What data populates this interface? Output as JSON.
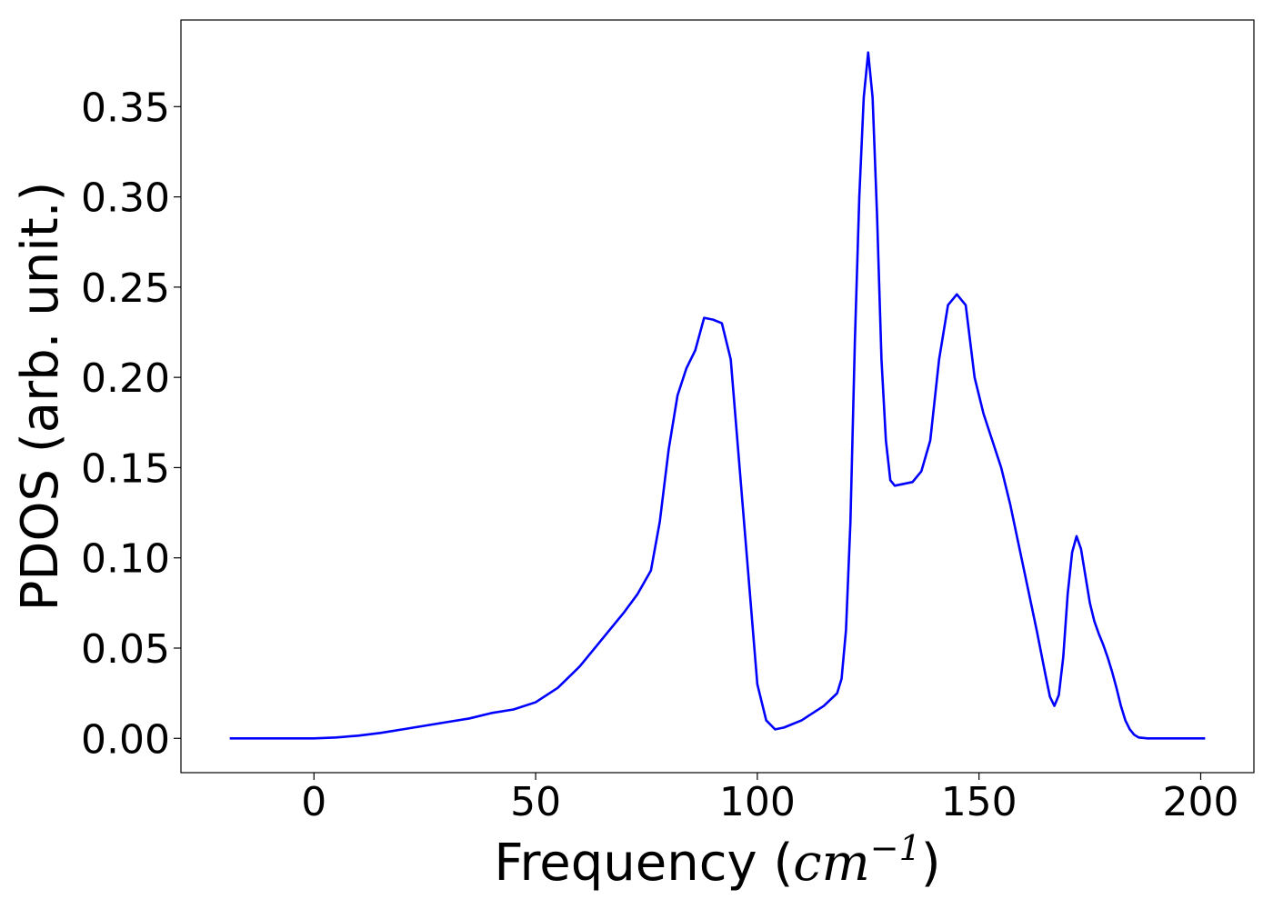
{
  "chart_data": {
    "type": "line",
    "xlabel_main": "Frequency (",
    "xlabel_unit": "cm",
    "xlabel_sup": "−1",
    "xlabel_close": ")",
    "ylabel": "PDOS (arb. unit.)",
    "xlim": [
      -30,
      212
    ],
    "ylim": [
      -0.019,
      0.398
    ],
    "xticks": [
      0,
      50,
      100,
      150,
      200
    ],
    "yticks": [
      0.0,
      0.05,
      0.1,
      0.15,
      0.2,
      0.25,
      0.3,
      0.35
    ],
    "xtick_labels": [
      "0",
      "50",
      "100",
      "150",
      "200"
    ],
    "ytick_labels": [
      "0.00",
      "0.05",
      "0.10",
      "0.15",
      "0.20",
      "0.25",
      "0.30",
      "0.35"
    ],
    "grid": false,
    "series": [
      {
        "color": "#0000ff",
        "x": [
          -19,
          0,
          5,
          10,
          15,
          20,
          25,
          30,
          35,
          40,
          45,
          50,
          55,
          60,
          65,
          70,
          73,
          76,
          78,
          80,
          82,
          84,
          86,
          88,
          90,
          92,
          94,
          96,
          98,
          100,
          102,
          104,
          106,
          110,
          115,
          118,
          119,
          120,
          121,
          122,
          123,
          124,
          125,
          126,
          127,
          128,
          129,
          130,
          131,
          133,
          135,
          137,
          139,
          141,
          143,
          145,
          147,
          149,
          151,
          153,
          155,
          157,
          160,
          163,
          165,
          166,
          167,
          168,
          169,
          170,
          171,
          172,
          173,
          174,
          175,
          176,
          177,
          178,
          179,
          180,
          181,
          182,
          183,
          184,
          185,
          186,
          188,
          192,
          201
        ],
        "y": [
          0.0,
          0.0,
          0.0005,
          0.0015,
          0.003,
          0.005,
          0.007,
          0.009,
          0.011,
          0.014,
          0.016,
          0.02,
          0.028,
          0.04,
          0.055,
          0.07,
          0.08,
          0.093,
          0.12,
          0.16,
          0.19,
          0.205,
          0.215,
          0.233,
          0.232,
          0.23,
          0.21,
          0.15,
          0.09,
          0.03,
          0.01,
          0.005,
          0.006,
          0.01,
          0.018,
          0.025,
          0.033,
          0.06,
          0.12,
          0.22,
          0.3,
          0.355,
          0.38,
          0.355,
          0.29,
          0.21,
          0.165,
          0.143,
          0.14,
          0.141,
          0.142,
          0.148,
          0.165,
          0.21,
          0.24,
          0.246,
          0.24,
          0.2,
          0.18,
          0.165,
          0.15,
          0.13,
          0.095,
          0.06,
          0.035,
          0.023,
          0.018,
          0.024,
          0.045,
          0.08,
          0.103,
          0.112,
          0.105,
          0.09,
          0.075,
          0.065,
          0.058,
          0.052,
          0.045,
          0.037,
          0.028,
          0.018,
          0.01,
          0.005,
          0.002,
          0.0005,
          0.0,
          0.0,
          0.0
        ]
      }
    ]
  }
}
